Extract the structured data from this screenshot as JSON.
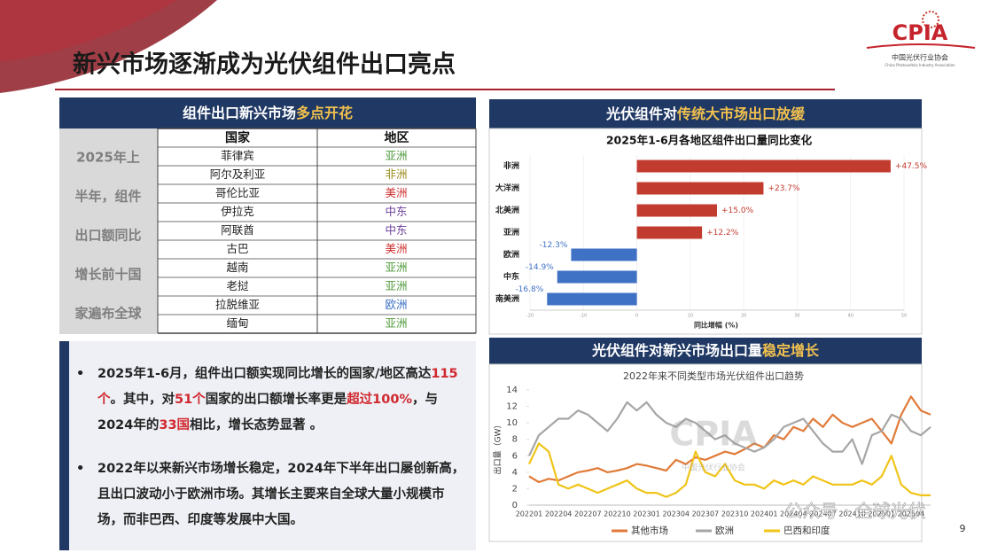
{
  "header": {
    "title": "新兴市场逐渐成为光伏组件出口亮点"
  },
  "logo": {
    "mark": "CPIA",
    "name": "中国光伏行业协会",
    "english": "China Photovoltaic Industry Association"
  },
  "table": {
    "panel_title": {
      "text": "组件出口新兴市场",
      "highlight": "多点开花"
    },
    "side_label": [
      "2025年上",
      "半年，组件",
      "出口额同比",
      "增长前十国",
      "家遍布全球"
    ],
    "columns": [
      "国家",
      "地区"
    ],
    "rows": [
      {
        "country": "菲律宾",
        "region": "亚洲",
        "color": "#4e9a3a"
      },
      {
        "country": "阿尔及利亚",
        "region": "非洲",
        "color": "#9a8a1a"
      },
      {
        "country": "哥伦比亚",
        "region": "美洲",
        "color": "#d03030"
      },
      {
        "country": "伊拉克",
        "region": "中东",
        "color": "#6a3d9a"
      },
      {
        "country": "阿联酋",
        "region": "中东",
        "color": "#6a3d9a"
      },
      {
        "country": "古巴",
        "region": "美洲",
        "color": "#d03030"
      },
      {
        "country": "越南",
        "region": "亚洲",
        "color": "#4e9a3a"
      },
      {
        "country": "老挝",
        "region": "亚洲",
        "color": "#4e9a3a"
      },
      {
        "country": "拉脱维亚",
        "region": "欧洲",
        "color": "#3a6fc4"
      },
      {
        "country": "缅甸",
        "region": "亚洲",
        "color": "#4e9a3a"
      }
    ]
  },
  "bullets": [
    {
      "segments": [
        {
          "text": "2025年1-6月，组件出口额实现同比增长的国家/地区高达",
          "highlight": false
        },
        {
          "text": "115个",
          "highlight": true
        },
        {
          "text": "。其中，对",
          "highlight": false
        },
        {
          "text": "51个",
          "highlight": true
        },
        {
          "text": "国家的出口额增长率更是",
          "highlight": false
        },
        {
          "text": "超过100%",
          "highlight": true
        },
        {
          "text": "，与2024年的",
          "highlight": false
        },
        {
          "text": "33国",
          "highlight": true
        },
        {
          "text": "相比，增长态势显著 。",
          "highlight": false
        }
      ]
    },
    {
      "segments": [
        {
          "text": "2022年以来新兴市场增长稳定，2024年下半年出口屡创新高，且出口波动小于欧洲市场。其增长主要来自全球大量小规模市场，而非巴西、印度等发展中大国。",
          "highlight": false
        }
      ]
    }
  ],
  "chart_data": [
    {
      "type": "barh",
      "panel_title": {
        "text": "光伏组件对",
        "highlight": "传统大市场出口放缓"
      },
      "title": "2025年1-6月各地区组件出口量同比变化",
      "x_label": "同比增幅 (%)",
      "categories": [
        "非洲",
        "大洋洲",
        "北美洲",
        "亚洲",
        "欧洲",
        "中东",
        "南美洲"
      ],
      "values": [
        47.5,
        23.7,
        15.0,
        12.2,
        -12.3,
        -14.9,
        -16.8
      ],
      "value_labels": [
        "+47.5%",
        "+23.7%",
        "+15.0%",
        "+12.2%",
        "-12.3%",
        "-14.9%",
        "-16.8%"
      ],
      "color": "#c23b2f",
      "negative_color": "#3f72c4",
      "xlim": [
        -20,
        50
      ],
      "xticks": [
        -20,
        -10,
        0,
        10,
        20,
        30,
        40,
        50
      ],
      "grid": true
    },
    {
      "type": "line",
      "panel_title": {
        "text": "光伏组件对新兴市场出口量",
        "highlight": "稳定增长"
      },
      "title": "2022年来不同类型市场光伏组件出口趋势",
      "y_label": "出口量（GW）",
      "categories": [
        "202201",
        null,
        null,
        "202204",
        null,
        null,
        "202207",
        null,
        null,
        "202210",
        null,
        null,
        "202301",
        null,
        null,
        "202304",
        null,
        null,
        "202307",
        null,
        null,
        "202310",
        null,
        null,
        "202401",
        null,
        null,
        "202404",
        null,
        null,
        "202407",
        null,
        null,
        "202410",
        null,
        null,
        "202501",
        null,
        null,
        "202504",
        null,
        null
      ],
      "series": [
        {
          "name": "其他市场",
          "color": "#e07b39",
          "values": [
            3.5,
            2.8,
            3.2,
            3.0,
            3.5,
            4.0,
            4.2,
            4.5,
            4.0,
            4.2,
            4.5,
            5.0,
            4.8,
            4.5,
            4.2,
            5.5,
            5.0,
            5.8,
            5.5,
            6.0,
            6.5,
            6.2,
            6.8,
            7.5,
            7.0,
            8.5,
            8.0,
            9.5,
            9.0,
            10.5,
            9.5,
            11.0,
            10.0,
            9.5,
            10.0,
            10.5,
            9.0,
            7.5,
            11.0,
            13.2,
            11.5,
            11.0
          ]
        },
        {
          "name": "欧洲",
          "color": "#a6a6a6",
          "values": [
            6,
            8.5,
            9.5,
            10.5,
            10.5,
            11.5,
            11,
            10,
            9,
            10.5,
            12.5,
            11.5,
            12.5,
            11,
            10,
            9.5,
            10.5,
            10,
            9,
            8,
            8.5,
            7.5,
            7,
            6.5,
            7,
            8,
            9.5,
            10,
            10.5,
            9,
            7.5,
            6.5,
            6.5,
            8,
            5,
            8.5,
            9,
            11,
            10.5,
            9,
            8.5,
            9.5
          ]
        },
        {
          "name": "巴西和印度",
          "color": "#f0c419",
          "values": [
            5,
            7.5,
            6.5,
            2.5,
            2,
            2.5,
            2,
            1.5,
            2,
            2.5,
            3,
            2,
            1.5,
            1.5,
            1,
            1.5,
            2.5,
            6.5,
            4,
            3.5,
            5,
            3,
            2.5,
            2.5,
            2,
            3,
            2.5,
            3,
            2.5,
            3.5,
            3,
            2.5,
            2.5,
            2.5,
            3,
            2.5,
            3.5,
            6,
            2.5,
            1.5,
            1.2,
            1.2
          ]
        }
      ],
      "ylim": [
        0,
        14
      ],
      "yticks": [
        0,
        2,
        4,
        6,
        8,
        10,
        12,
        14
      ],
      "grid": false
    }
  ],
  "watermark": {
    "logo": "CPIA",
    "name": "中国光伏行业协会"
  },
  "footer": {
    "account": "公众号 · 全球光伏",
    "page": "9"
  }
}
